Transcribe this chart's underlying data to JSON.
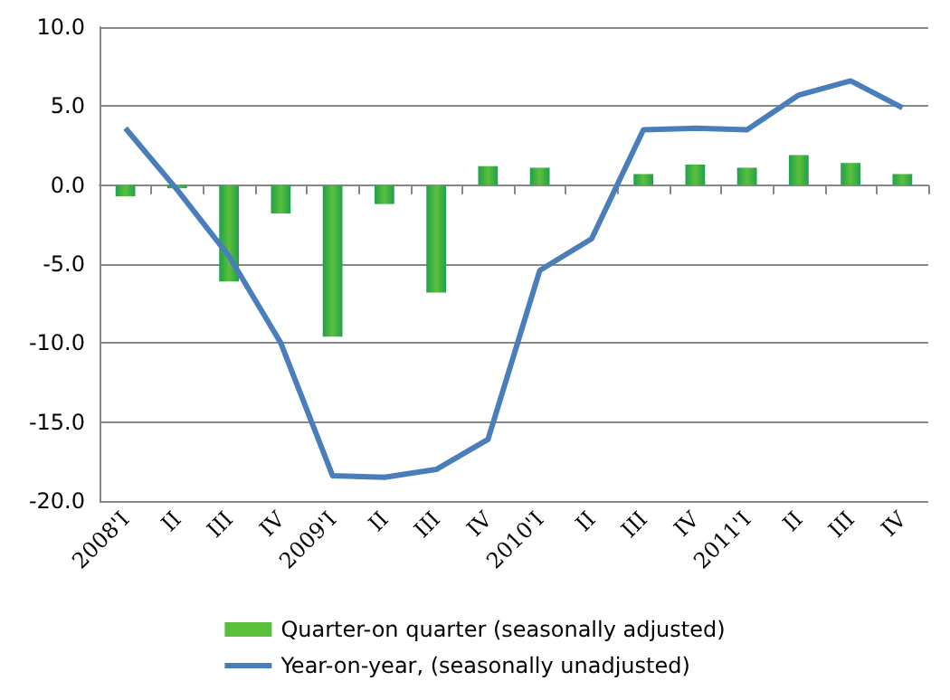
{
  "chart_data": {
    "type": "bar",
    "categories": [
      "2008'I",
      "II",
      "III",
      "IV",
      "2009'I",
      "II",
      "III",
      "IV",
      "2010'I",
      "II",
      "III",
      "IV",
      "2011'I",
      "II",
      "III",
      "IV"
    ],
    "series": [
      {
        "name": "Quarter-on quarter (seasonally adjusted)",
        "color": "#5cbf3c",
        "values": [
          -0.7,
          -0.2,
          -6.1,
          -1.8,
          -9.6,
          -1.2,
          -6.8,
          1.2,
          1.1,
          0,
          0.7,
          1.3,
          1.1,
          1.9,
          1.4,
          0.7
        ]
      },
      {
        "name": "Year-on-year, (seasonally unadjusted)",
        "type": "line",
        "color": "#4a7ebb",
        "values": [
          3.6,
          -0.3,
          -4.5,
          -10.0,
          -18.4,
          -18.5,
          -18.0,
          -16.1,
          -5.4,
          -3.4,
          3.5,
          3.6,
          3.5,
          5.7,
          6.6,
          4.9
        ]
      }
    ],
    "ylim": [
      -20,
      10
    ],
    "yticks": [
      {
        "value": -20,
        "label": "-20.0"
      },
      {
        "value": -15,
        "label": "-15.0"
      },
      {
        "value": -10,
        "label": "-10.0"
      },
      {
        "value": -5,
        "label": "-5.0"
      },
      {
        "value": 0,
        "label": "0.0"
      },
      {
        "value": 5,
        "label": "5.0"
      },
      {
        "value": 10,
        "label": "10.0"
      }
    ],
    "grid": "y",
    "legend": "bottom",
    "marker": "none"
  }
}
